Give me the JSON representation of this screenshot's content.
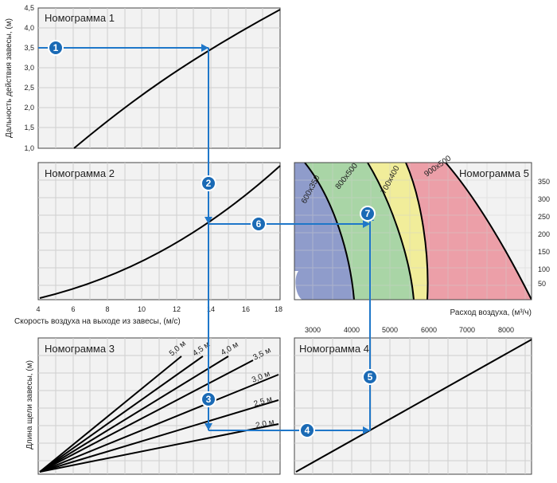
{
  "nomogram1": {
    "title": "Номограмма 1",
    "ylabel": "Дальность действия завесы, (м)",
    "yticks": [
      "4,5",
      "4,0",
      "3,5",
      "3,0",
      "2,5",
      "2,0",
      "1,5",
      "1,0"
    ]
  },
  "nomogram2": {
    "title": "Номограмма 2",
    "xlabel": "Скорость воздуха на выходе из завесы, (м/с)",
    "xticks": [
      "4",
      "6",
      "8",
      "10",
      "12",
      "14",
      "16",
      "18"
    ]
  },
  "nomogram3": {
    "title": "Номограмма 3",
    "ylabel": "Длина щели завесы, (м)",
    "curve_labels": [
      "5,0 м",
      "4,5 м",
      "4,0 м",
      "3,5 м",
      "3,0 м",
      "2,5 м",
      "2,0 м"
    ]
  },
  "nomogram4": {
    "title": "Номограмма 4",
    "xticks": [
      "3000",
      "4000",
      "5000",
      "6000",
      "7000",
      "8000"
    ]
  },
  "nomogram5": {
    "title": "Номограмма 5",
    "xlabel": "Расход воздуха, (м³/ч)",
    "yticks": [
      "350",
      "300",
      "250",
      "200",
      "150",
      "100",
      "50"
    ],
    "zone_labels": [
      "600x350",
      "800x500",
      "700x400",
      "900x500"
    ],
    "zone_colors": [
      "#8f9ccb",
      "#a9d5a6",
      "#f1ed9a",
      "#ec9fa8"
    ]
  },
  "steps": [
    "1",
    "2",
    "3",
    "4",
    "5",
    "6",
    "7"
  ],
  "colors": {
    "flow": "#1f77c9",
    "marker": "#1a6ab5"
  }
}
